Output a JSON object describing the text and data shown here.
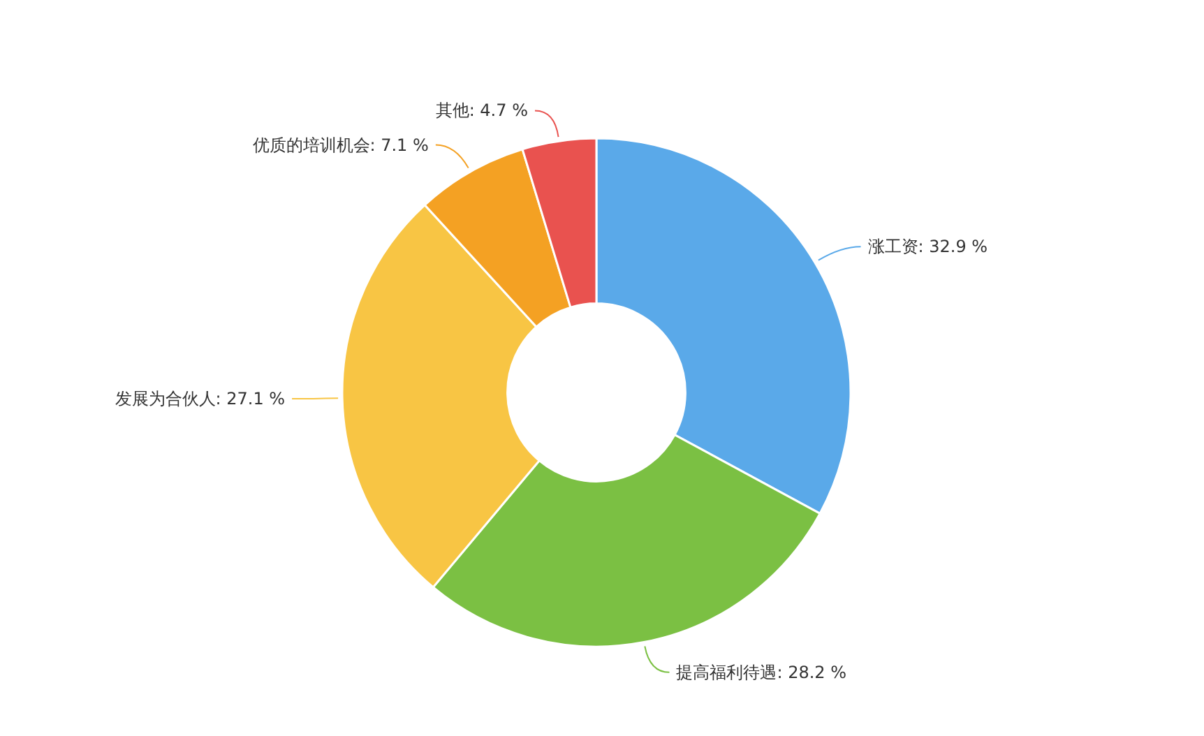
{
  "chart_data": {
    "type": "donut",
    "categories": [
      "涨工资",
      "提高福利待遇",
      "发展为合伙人",
      "优质的培训机会",
      "其他"
    ],
    "values": [
      32.9,
      28.2,
      27.1,
      7.1,
      4.7
    ],
    "value_labels": [
      "32.9 %",
      "28.2 %",
      "27.1 %",
      "7.1 %",
      "4.7 %"
    ],
    "colors": [
      "#5aa9e9",
      "#7bc043",
      "#f8c544",
      "#f4a123",
      "#e9524f"
    ],
    "data_labels": true
  }
}
